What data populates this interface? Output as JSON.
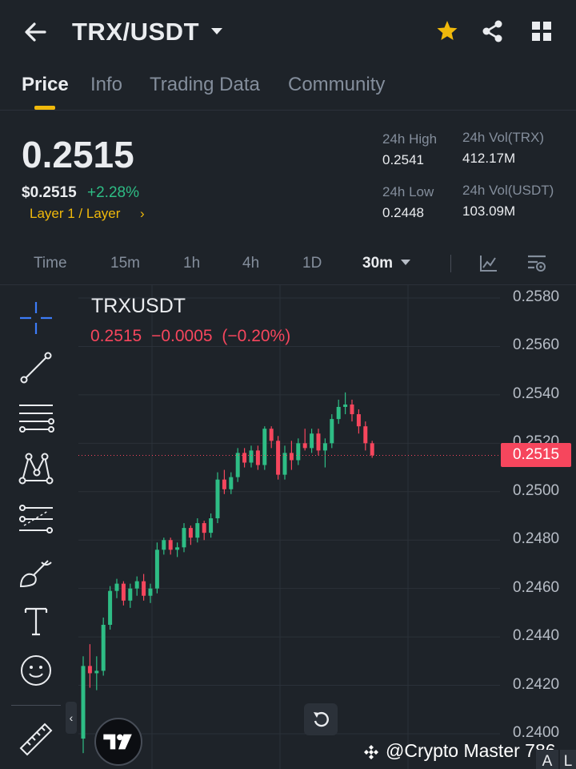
{
  "header": {
    "pair": "TRX/USDT"
  },
  "tabs": [
    "Price",
    "Info",
    "Trading Data",
    "Community"
  ],
  "stats": {
    "price": "0.2515",
    "usd_price": "$0.2515",
    "change": "+2.28%",
    "tag": "Layer 1 / Layer",
    "high_label": "24h High",
    "high_value": "0.2541",
    "low_label": "24h Low",
    "low_value": "0.2448",
    "vol_trx_label": "24h Vol(TRX)",
    "vol_trx_value": "412.17M",
    "vol_usdt_label": "24h Vol(USDT)",
    "vol_usdt_value": "103.09M"
  },
  "timeframes": [
    "Time",
    "15m",
    "1h",
    "4h",
    "1D",
    "30m"
  ],
  "chart": {
    "symbol": "TRXUSDT",
    "last": "0.2515",
    "change_abs": "−0.0005",
    "change_pct": "(−0.20%)",
    "current_label": "0.2515",
    "y_ticks": [
      "0.2580",
      "0.2560",
      "0.2540",
      "0.2520",
      "0.2500",
      "0.2480",
      "0.2460",
      "0.2440",
      "0.2420",
      "0.2400"
    ],
    "watermark": "@Crypto Master 786",
    "al_a": "A",
    "al_l": "L"
  },
  "colors": {
    "up": "#2ebd85",
    "down": "#f6465d",
    "accent": "#f0b90b",
    "bg": "#1e2329"
  },
  "chart_data": {
    "type": "candlestick",
    "ylim": [
      0.24,
      0.258
    ],
    "current_price": 0.2515,
    "candles": [
      {
        "o": 0.2398,
        "h": 0.2432,
        "l": 0.2392,
        "c": 0.2428
      },
      {
        "o": 0.2428,
        "h": 0.2437,
        "l": 0.2419,
        "c": 0.2425
      },
      {
        "o": 0.2425,
        "h": 0.2432,
        "l": 0.2418,
        "c": 0.2426
      },
      {
        "o": 0.2426,
        "h": 0.2448,
        "l": 0.2424,
        "c": 0.2445
      },
      {
        "o": 0.2445,
        "h": 0.2461,
        "l": 0.2443,
        "c": 0.2459
      },
      {
        "o": 0.2459,
        "h": 0.2464,
        "l": 0.2456,
        "c": 0.2462
      },
      {
        "o": 0.2462,
        "h": 0.2463,
        "l": 0.2453,
        "c": 0.2455
      },
      {
        "o": 0.2455,
        "h": 0.2462,
        "l": 0.2452,
        "c": 0.246
      },
      {
        "o": 0.246,
        "h": 0.2465,
        "l": 0.2457,
        "c": 0.2463
      },
      {
        "o": 0.2463,
        "h": 0.2466,
        "l": 0.2455,
        "c": 0.2457
      },
      {
        "o": 0.2457,
        "h": 0.2462,
        "l": 0.2454,
        "c": 0.246
      },
      {
        "o": 0.246,
        "h": 0.2479,
        "l": 0.2458,
        "c": 0.2476
      },
      {
        "o": 0.2476,
        "h": 0.2481,
        "l": 0.2474,
        "c": 0.248
      },
      {
        "o": 0.248,
        "h": 0.2481,
        "l": 0.2474,
        "c": 0.2476
      },
      {
        "o": 0.2476,
        "h": 0.2479,
        "l": 0.2473,
        "c": 0.2477
      },
      {
        "o": 0.2477,
        "h": 0.2487,
        "l": 0.2475,
        "c": 0.2485
      },
      {
        "o": 0.2485,
        "h": 0.2486,
        "l": 0.2478,
        "c": 0.2481
      },
      {
        "o": 0.2481,
        "h": 0.2489,
        "l": 0.2479,
        "c": 0.2487
      },
      {
        "o": 0.2487,
        "h": 0.2488,
        "l": 0.248,
        "c": 0.2483
      },
      {
        "o": 0.2483,
        "h": 0.2491,
        "l": 0.2481,
        "c": 0.2489
      },
      {
        "o": 0.2489,
        "h": 0.2508,
        "l": 0.2487,
        "c": 0.2505
      },
      {
        "o": 0.2505,
        "h": 0.2509,
        "l": 0.2499,
        "c": 0.2501
      },
      {
        "o": 0.2501,
        "h": 0.2508,
        "l": 0.2499,
        "c": 0.2506
      },
      {
        "o": 0.2506,
        "h": 0.2518,
        "l": 0.2504,
        "c": 0.2516
      },
      {
        "o": 0.2516,
        "h": 0.2518,
        "l": 0.251,
        "c": 0.2512
      },
      {
        "o": 0.2512,
        "h": 0.2519,
        "l": 0.251,
        "c": 0.2517
      },
      {
        "o": 0.2517,
        "h": 0.2519,
        "l": 0.2509,
        "c": 0.2511
      },
      {
        "o": 0.2511,
        "h": 0.2527,
        "l": 0.2509,
        "c": 0.2526
      },
      {
        "o": 0.2526,
        "h": 0.2527,
        "l": 0.2518,
        "c": 0.2521
      },
      {
        "o": 0.2521,
        "h": 0.2523,
        "l": 0.2505,
        "c": 0.2507
      },
      {
        "o": 0.2507,
        "h": 0.2519,
        "l": 0.2505,
        "c": 0.2516
      },
      {
        "o": 0.2516,
        "h": 0.2521,
        "l": 0.2509,
        "c": 0.2513
      },
      {
        "o": 0.2513,
        "h": 0.2522,
        "l": 0.2511,
        "c": 0.252
      },
      {
        "o": 0.252,
        "h": 0.2526,
        "l": 0.2517,
        "c": 0.2518
      },
      {
        "o": 0.2518,
        "h": 0.2526,
        "l": 0.2516,
        "c": 0.2524
      },
      {
        "o": 0.2524,
        "h": 0.2526,
        "l": 0.2515,
        "c": 0.2517
      },
      {
        "o": 0.2517,
        "h": 0.2522,
        "l": 0.251,
        "c": 0.252
      },
      {
        "o": 0.252,
        "h": 0.2532,
        "l": 0.2518,
        "c": 0.253
      },
      {
        "o": 0.253,
        "h": 0.2538,
        "l": 0.2528,
        "c": 0.2535
      },
      {
        "o": 0.2535,
        "h": 0.2541,
        "l": 0.2532,
        "c": 0.2536
      },
      {
        "o": 0.2536,
        "h": 0.2538,
        "l": 0.2529,
        "c": 0.2532
      },
      {
        "o": 0.2532,
        "h": 0.2534,
        "l": 0.2524,
        "c": 0.2527
      },
      {
        "o": 0.2527,
        "h": 0.2529,
        "l": 0.2517,
        "c": 0.252
      },
      {
        "o": 0.252,
        "h": 0.2521,
        "l": 0.2514,
        "c": 0.2515
      }
    ]
  }
}
